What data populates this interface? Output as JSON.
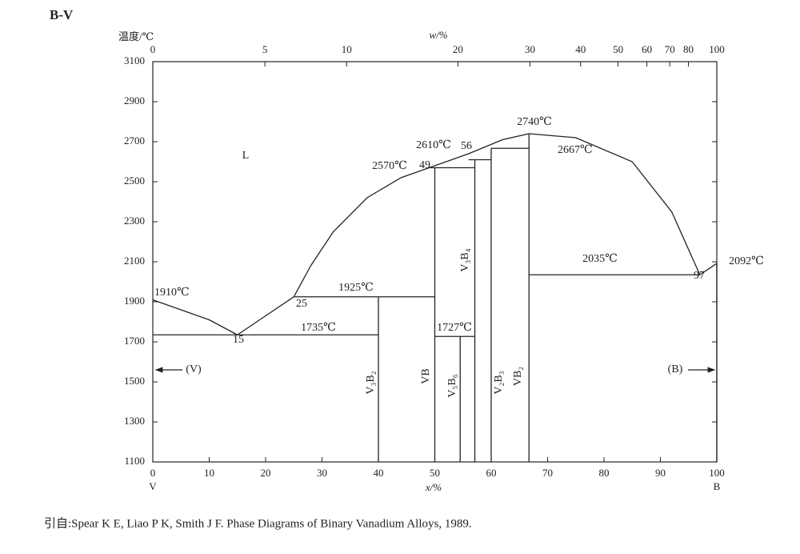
{
  "chart_data": {
    "type": "line",
    "title": "B-V",
    "y_label": "温度/℃",
    "x_label": "x/%",
    "x2_label": "w/%",
    "x_left_label": "V",
    "x_right_label": "B",
    "caption": "引自:Spear K E, Liao P K, Smith J F. Phase Diagrams of Binary Vanadium Alloys, 1989.",
    "xlim": [
      0,
      100
    ],
    "xticks": [
      0,
      10,
      20,
      30,
      40,
      50,
      60,
      70,
      80,
      90,
      100
    ],
    "x2ticks": [
      0,
      5,
      10,
      20,
      30,
      40,
      50,
      60,
      70,
      80,
      100
    ],
    "ylim": [
      1100,
      3100
    ],
    "yticks": [
      1100,
      1300,
      1500,
      1700,
      1900,
      2100,
      2300,
      2500,
      2700,
      2900,
      3100
    ],
    "color": "#222222",
    "series": [
      {
        "x": [
          0,
          5,
          10,
          15
        ],
        "values": [
          1910,
          1860,
          1810,
          1735
        ]
      },
      {
        "x": [
          15,
          20,
          25,
          28,
          32,
          38,
          44,
          49,
          56,
          62,
          66.7
        ],
        "values": [
          1735,
          1830,
          1925,
          2080,
          2250,
          2420,
          2520,
          2570,
          2640,
          2710,
          2740
        ]
      },
      {
        "x": [
          66.7,
          75,
          85,
          92,
          97
        ],
        "values": [
          2740,
          2720,
          2600,
          2350,
          2035
        ]
      },
      {
        "x": [
          97,
          100
        ],
        "values": [
          2035,
          2092
        ]
      },
      {
        "x": [
          0,
          40
        ],
        "values": [
          1735,
          1735
        ]
      },
      {
        "x": [
          25,
          50
        ],
        "values": [
          1925,
          1925
        ]
      },
      {
        "x": [
          49,
          57.1
        ],
        "values": [
          2570,
          2570
        ]
      },
      {
        "x": [
          56,
          60
        ],
        "values": [
          2610,
          2610
        ]
      },
      {
        "x": [
          60,
          66.7
        ],
        "values": [
          2667,
          2667
        ]
      },
      {
        "x": [
          50,
          57.1
        ],
        "values": [
          1727,
          1727
        ]
      },
      {
        "x": [
          66.7,
          97
        ],
        "values": [
          2035,
          2035
        ]
      },
      {
        "x": [
          40,
          40
        ],
        "values": [
          1100,
          1925
        ]
      },
      {
        "x": [
          50,
          50
        ],
        "values": [
          1100,
          2570
        ]
      },
      {
        "x": [
          54.5,
          54.5
        ],
        "values": [
          1100,
          1727
        ]
      },
      {
        "x": [
          57.1,
          57.1
        ],
        "values": [
          1100,
          2610
        ]
      },
      {
        "x": [
          60,
          60
        ],
        "values": [
          1100,
          2667
        ]
      },
      {
        "x": [
          66.7,
          66.7
        ],
        "values": [
          1100,
          2740
        ]
      },
      {
        "x": [
          100,
          100
        ],
        "values": [
          1100,
          2092
        ]
      }
    ],
    "annotations": [
      "1910℃",
      "15",
      "25",
      "1925℃",
      "1735℃",
      "2570℃",
      "49",
      "2610℃",
      "56",
      "2740℃",
      "2667℃",
      "2035℃",
      "97",
      "2092℃",
      "1727℃",
      "L",
      "(V)",
      "(B)"
    ],
    "phase_labels": [
      "V₃B₂",
      "VB",
      "V₅B₆",
      "V₃B₄",
      "V₂B₃",
      "VB₂"
    ]
  }
}
